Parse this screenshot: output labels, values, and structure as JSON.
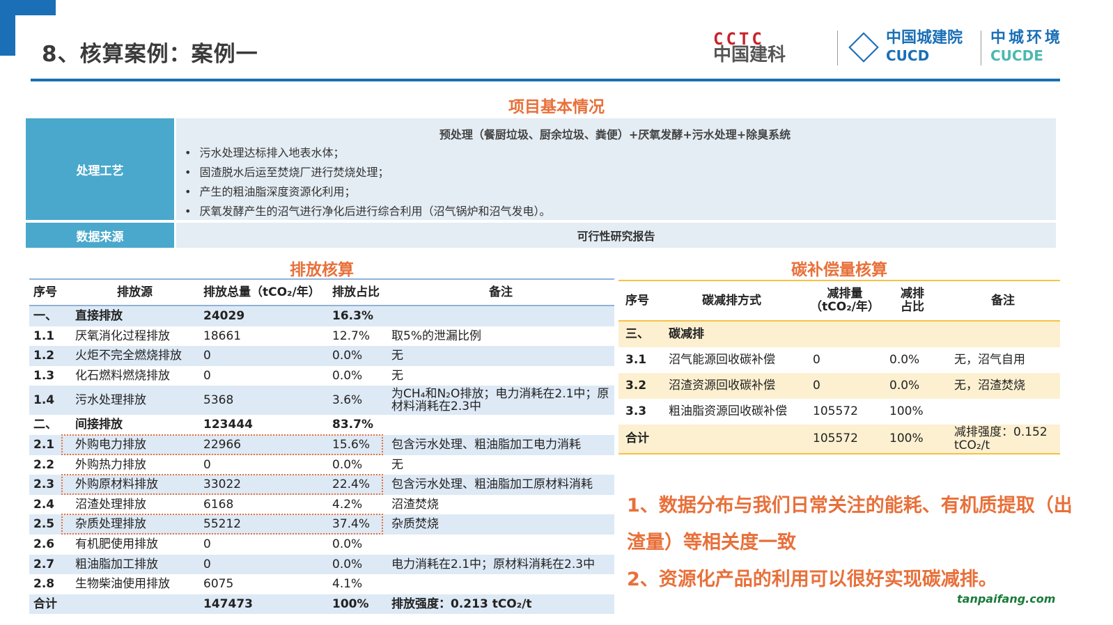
{
  "header": {
    "title": "8、核算案例：案例一",
    "logos": [
      "CCTC 中国建科",
      "中国城建院 CUCD",
      "中城环境 CUCDE"
    ],
    "brand_color": "#1a6fb0"
  },
  "project": {
    "title": "项目基本情况",
    "process_label": "处理工艺",
    "process_head": "预处理（餐厨垃圾、厨余垃圾、粪便）+厌氧发酵+污水处理+除臭系统",
    "process_items": [
      "污水处理达标排入地表水体；",
      "固渣脱水后运至焚烧厂进行焚烧处理；",
      "产生的粗油脂深度资源化利用；",
      "厌氧发酵产生的沼气进行净化后进行综合利用（沼气锅炉和沼气发电）。"
    ],
    "source_label": "数据来源",
    "source_value": "可行性研究报告"
  },
  "emission": {
    "title": "排放核算",
    "headers": [
      "序号",
      "排放源",
      "排放总量（tCO₂/年）",
      "排放占比",
      "备注"
    ],
    "rows": [
      {
        "no": "一、",
        "name": "直接排放",
        "total": "24029",
        "ratio": "16.3%",
        "note": "",
        "bold": true
      },
      {
        "no": "1.1",
        "name": "厌氧消化过程排放",
        "total": "18661",
        "ratio": "12.7%",
        "note": "取5%的泄漏比例"
      },
      {
        "no": "1.2",
        "name": "火炬不完全燃烧排放",
        "total": "0",
        "ratio": "0.0%",
        "note": "无"
      },
      {
        "no": "1.3",
        "name": "化石燃料燃烧排放",
        "total": "0",
        "ratio": "0.0%",
        "note": "无"
      },
      {
        "no": "1.4",
        "name": "污水处理排放",
        "total": "5368",
        "ratio": "3.6%",
        "note": "为CH₄和N₂O排放；电力消耗在2.1中；原材料消耗在2.3中"
      },
      {
        "no": "二、",
        "name": "间接排放",
        "total": "123444",
        "ratio": "83.7%",
        "note": "",
        "bold": true
      },
      {
        "no": "2.1",
        "name": "外购电力排放",
        "total": "22966",
        "ratio": "15.6%",
        "note": "包含污水处理、粗油脂加工电力消耗",
        "highlight": true
      },
      {
        "no": "2.2",
        "name": "外购热力排放",
        "total": "0",
        "ratio": "0.0%",
        "note": "无"
      },
      {
        "no": "2.3",
        "name": "外购原材料排放",
        "total": "33022",
        "ratio": "22.4%",
        "note": "包含污水处理、粗油脂加工原材料消耗",
        "highlight": true
      },
      {
        "no": "2.4",
        "name": "沼渣处理排放",
        "total": "6168",
        "ratio": "4.2%",
        "note": "沼渣焚烧"
      },
      {
        "no": "2.5",
        "name": "杂质处理排放",
        "total": "55212",
        "ratio": "37.4%",
        "note": "杂质焚烧",
        "highlight": true
      },
      {
        "no": "2.6",
        "name": "有机肥使用排放",
        "total": "0",
        "ratio": "0.0%",
        "note": ""
      },
      {
        "no": "2.7",
        "name": "粗油脂加工排放",
        "total": "0",
        "ratio": "0.0%",
        "note": "电力消耗在2.1中；原材料消耗在2.3中"
      },
      {
        "no": "2.8",
        "name": "生物柴油使用排放",
        "total": "6075",
        "ratio": "4.1%",
        "note": ""
      },
      {
        "no": "合计",
        "name": "",
        "total": "147473",
        "ratio": "100%",
        "note": "排放强度：0.213 tCO₂/t",
        "bold": true
      }
    ]
  },
  "compensation": {
    "title": "碳补偿量核算",
    "headers": [
      "序号",
      "碳减排方式",
      "减排量（tCO₂/年）",
      "减排占比",
      "备注"
    ],
    "rows": [
      {
        "no": "三、",
        "name": "碳减排",
        "amount": "",
        "ratio": "",
        "note": "",
        "bold": true
      },
      {
        "no": "3.1",
        "name": "沼气能源回收碳补偿",
        "amount": "0",
        "ratio": "0.0%",
        "note": "无，沼气自用"
      },
      {
        "no": "3.2",
        "name": "沼渣资源回收碳补偿",
        "amount": "0",
        "ratio": "0.0%",
        "note": "无，沼渣焚烧"
      },
      {
        "no": "3.3",
        "name": "粗油脂资源回收碳补偿",
        "amount": "105572",
        "ratio": "100%",
        "note": ""
      },
      {
        "no": "合计",
        "name": "",
        "amount": "105572",
        "ratio": "100%",
        "note": "减排强度：0.152 tCO₂/t",
        "bold": true
      }
    ]
  },
  "conclusions": [
    "1、数据分布与我们日常关注的能耗、有机质提取（出渣量）等相关度一致",
    "2、资源化产品的利用可以很好实现碳减排。"
  ],
  "watermark": "tanpaifang.com",
  "colors": {
    "accent": "#e8703a",
    "teal": "#4aa8cc",
    "row_blue": "#dde9f5",
    "row_yellow": "#fdf0d0",
    "yellow_line": "#f5c242"
  }
}
